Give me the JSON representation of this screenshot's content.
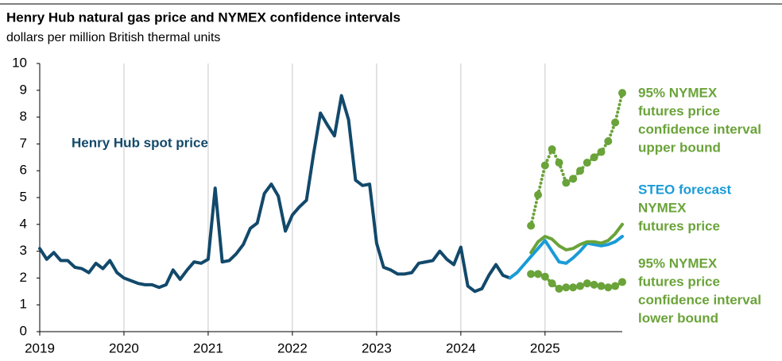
{
  "chart_data": {
    "type": "line",
    "title": "Henry Hub natural gas price and NYMEX confidence intervals",
    "subtitle": "dollars per million British thermal units",
    "xlim": [
      2019,
      2025.917
    ],
    "xticks": [
      2019,
      2020,
      2021,
      2022,
      2023,
      2024,
      2025
    ],
    "ylim": [
      0,
      10
    ],
    "yticks": [
      0,
      1,
      2,
      3,
      4,
      5,
      6,
      7,
      8,
      9,
      10
    ],
    "grid": true,
    "series": [
      {
        "label": [
          "Henry Hub spot price"
        ],
        "color": "#12496b",
        "style": "solid",
        "x": [
          2019.0,
          2019.083,
          2019.167,
          2019.25,
          2019.333,
          2019.417,
          2019.5,
          2019.583,
          2019.667,
          2019.75,
          2019.833,
          2019.917,
          2020.0,
          2020.083,
          2020.167,
          2020.25,
          2020.333,
          2020.417,
          2020.5,
          2020.583,
          2020.667,
          2020.75,
          2020.833,
          2020.917,
          2021.0,
          2021.083,
          2021.167,
          2021.25,
          2021.333,
          2021.417,
          2021.5,
          2021.583,
          2021.667,
          2021.75,
          2021.833,
          2021.917,
          2022.0,
          2022.083,
          2022.167,
          2022.25,
          2022.333,
          2022.417,
          2022.5,
          2022.583,
          2022.667,
          2022.75,
          2022.833,
          2022.917,
          2023.0,
          2023.083,
          2023.167,
          2023.25,
          2023.333,
          2023.417,
          2023.5,
          2023.583,
          2023.667,
          2023.75,
          2023.833,
          2023.917,
          2024.0,
          2024.083,
          2024.167,
          2024.25,
          2024.333,
          2024.417,
          2024.5,
          2024.583
        ],
        "values": [
          3.1,
          2.7,
          2.95,
          2.65,
          2.65,
          2.4,
          2.35,
          2.2,
          2.55,
          2.35,
          2.65,
          2.2,
          2.0,
          1.9,
          1.8,
          1.75,
          1.75,
          1.65,
          1.75,
          2.3,
          1.95,
          2.3,
          2.6,
          2.55,
          2.7,
          5.35,
          2.6,
          2.65,
          2.9,
          3.25,
          3.85,
          4.05,
          5.15,
          5.5,
          5.05,
          3.75,
          4.35,
          4.65,
          4.9,
          6.6,
          8.15,
          7.7,
          7.3,
          8.8,
          7.9,
          5.65,
          5.45,
          5.5,
          3.3,
          2.4,
          2.3,
          2.15,
          2.15,
          2.2,
          2.55,
          2.6,
          2.65,
          3.0,
          2.7,
          2.5,
          3.15,
          1.7,
          1.5,
          1.6,
          2.1,
          2.5,
          2.1,
          2.0
        ]
      },
      {
        "label": [
          "STEO forecast"
        ],
        "color": "#1a9bd7",
        "style": "solid",
        "x": [
          2024.583,
          2024.667,
          2024.75,
          2024.833,
          2024.917,
          2025.0,
          2025.083,
          2025.167,
          2025.25,
          2025.333,
          2025.417,
          2025.5,
          2025.583,
          2025.667,
          2025.75,
          2025.833,
          2025.917
        ],
        "values": [
          2.0,
          2.2,
          2.5,
          2.8,
          3.1,
          3.4,
          3.0,
          2.6,
          2.55,
          2.75,
          3.0,
          3.3,
          3.25,
          3.2,
          3.25,
          3.35,
          3.55
        ]
      },
      {
        "label": [
          "NYMEX",
          "futures price"
        ],
        "color": "#6aa339",
        "style": "solid",
        "x": [
          2024.833,
          2024.917,
          2025.0,
          2025.083,
          2025.167,
          2025.25,
          2025.333,
          2025.417,
          2025.5,
          2025.583,
          2025.667,
          2025.75,
          2025.833,
          2025.917
        ],
        "values": [
          2.95,
          3.35,
          3.55,
          3.45,
          3.2,
          3.05,
          3.1,
          3.25,
          3.35,
          3.35,
          3.3,
          3.4,
          3.65,
          4.0
        ]
      },
      {
        "label": [
          "95% NYMEX",
          "futures price",
          "confidence interval",
          "upper bound"
        ],
        "color": "#6aa339",
        "style": "dotted",
        "x": [
          2024.833,
          2024.917,
          2025.0,
          2025.083,
          2025.167,
          2025.25,
          2025.333,
          2025.417,
          2025.5,
          2025.583,
          2025.667,
          2025.75,
          2025.833,
          2025.917
        ],
        "values": [
          3.95,
          5.1,
          6.2,
          6.8,
          6.3,
          5.55,
          5.7,
          6.0,
          6.3,
          6.5,
          6.7,
          7.1,
          7.8,
          8.9
        ]
      },
      {
        "label": [
          "95% NYMEX",
          "futures price",
          "confidence interval",
          "lower bound"
        ],
        "color": "#6aa339",
        "style": "dotted",
        "x": [
          2024.833,
          2024.917,
          2025.0,
          2025.083,
          2025.167,
          2025.25,
          2025.333,
          2025.417,
          2025.5,
          2025.583,
          2025.667,
          2025.75,
          2025.833,
          2025.917
        ],
        "values": [
          2.15,
          2.15,
          2.05,
          1.8,
          1.6,
          1.65,
          1.65,
          1.7,
          1.8,
          1.75,
          1.7,
          1.65,
          1.7,
          1.85
        ]
      }
    ]
  }
}
